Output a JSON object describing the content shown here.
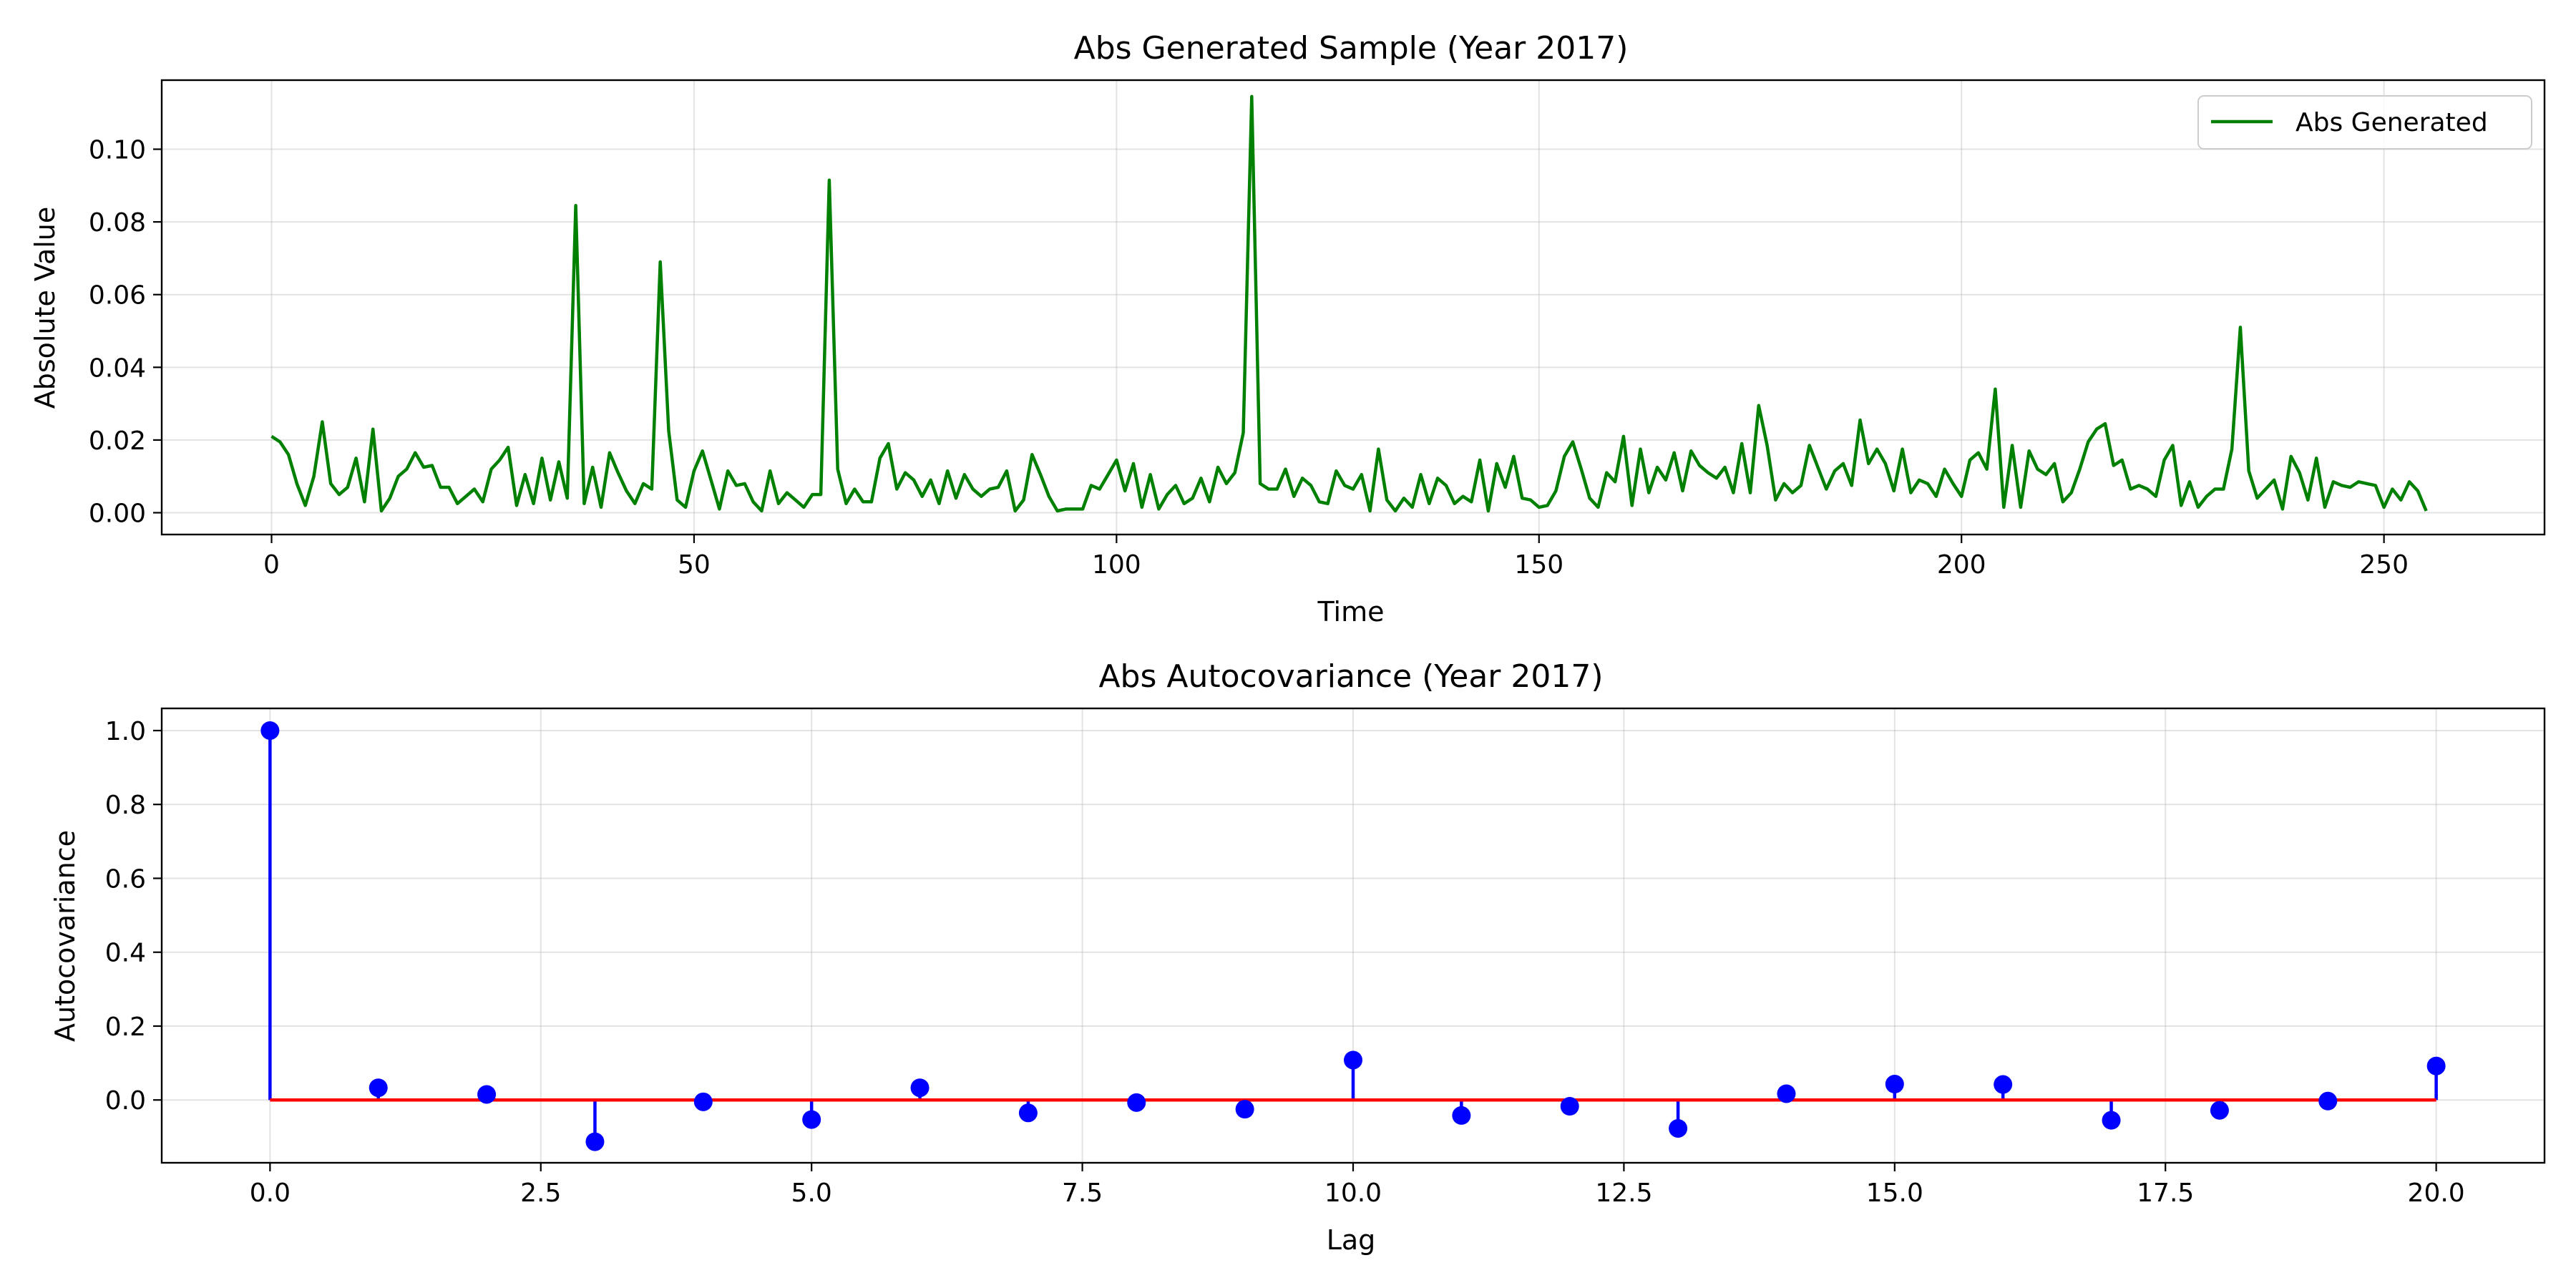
{
  "colors": {
    "series_line": "#008000",
    "stem": "#0000ff",
    "marker": "#0000ff",
    "baseline": "#ff0000"
  },
  "chart_data": [
    {
      "type": "line",
      "title": "Abs Generated Sample (Year 2017)",
      "xlabel": "Time",
      "ylabel": "Absolute Value",
      "xlim": [
        -13,
        269
      ],
      "ylim": [
        -0.006,
        0.119
      ],
      "xticks": [
        0,
        50,
        100,
        150,
        200,
        250
      ],
      "xtick_labels": [
        "0",
        "50",
        "100",
        "150",
        "200",
        "250"
      ],
      "yticks": [
        0.0,
        0.02,
        0.04,
        0.06,
        0.08,
        0.1
      ],
      "ytick_labels": [
        "0.00",
        "0.02",
        "0.04",
        "0.06",
        "0.08",
        "0.10"
      ],
      "grid": true,
      "legend": {
        "placement": "top-right",
        "entries": [
          "Abs Generated"
        ]
      },
      "series": [
        {
          "name": "Abs Generated",
          "x_start": 0,
          "x_step": 1,
          "values": [
            0.021,
            0.0195,
            0.016,
            0.008,
            0.002,
            0.01,
            0.025,
            0.008,
            0.005,
            0.007,
            0.015,
            0.003,
            0.023,
            0.0005,
            0.004,
            0.01,
            0.012,
            0.0165,
            0.0125,
            0.013,
            0.007,
            0.007,
            0.0025,
            0.0045,
            0.0065,
            0.003,
            0.012,
            0.0145,
            0.018,
            0.002,
            0.0105,
            0.0025,
            0.015,
            0.0035,
            0.014,
            0.004,
            0.0845,
            0.0025,
            0.0125,
            0.0015,
            0.0165,
            0.011,
            0.006,
            0.0025,
            0.008,
            0.0065,
            0.069,
            0.0225,
            0.0035,
            0.0015,
            0.0115,
            0.017,
            0.009,
            0.001,
            0.0115,
            0.0075,
            0.008,
            0.003,
            0.0005,
            0.0115,
            0.0025,
            0.0055,
            0.0035,
            0.0015,
            0.005,
            0.005,
            0.0915,
            0.012,
            0.0025,
            0.0065,
            0.003,
            0.003,
            0.015,
            0.019,
            0.0065,
            0.011,
            0.009,
            0.0045,
            0.009,
            0.0025,
            0.0115,
            0.004,
            0.0105,
            0.0065,
            0.0045,
            0.0065,
            0.007,
            0.0115,
            0.0005,
            0.0035,
            0.016,
            0.0105,
            0.0045,
            0.0005,
            0.001,
            0.001,
            0.001,
            0.0075,
            0.0065,
            0.0105,
            0.0145,
            0.006,
            0.0135,
            0.0015,
            0.0105,
            0.001,
            0.005,
            0.0075,
            0.0025,
            0.004,
            0.0095,
            0.003,
            0.0125,
            0.008,
            0.011,
            0.022,
            0.1145,
            0.008,
            0.0065,
            0.0065,
            0.012,
            0.0045,
            0.0095,
            0.0075,
            0.003,
            0.0025,
            0.0115,
            0.0075,
            0.0065,
            0.0105,
            0.0005,
            0.0175,
            0.0035,
            0.0005,
            0.004,
            0.0015,
            0.0105,
            0.0025,
            0.0095,
            0.0075,
            0.0025,
            0.0045,
            0.003,
            0.0145,
            0.0005,
            0.0135,
            0.007,
            0.0155,
            0.004,
            0.0035,
            0.0015,
            0.002,
            0.006,
            0.0155,
            0.0195,
            0.012,
            0.004,
            0.0015,
            0.011,
            0.0085,
            0.021,
            0.002,
            0.0175,
            0.0055,
            0.0125,
            0.009,
            0.0165,
            0.006,
            0.017,
            0.013,
            0.011,
            0.0095,
            0.0125,
            0.0055,
            0.019,
            0.0055,
            0.0295,
            0.0185,
            0.0035,
            0.008,
            0.0055,
            0.0075,
            0.0185,
            0.0125,
            0.0065,
            0.0115,
            0.0135,
            0.0075,
            0.0255,
            0.0135,
            0.0175,
            0.0135,
            0.006,
            0.0175,
            0.0055,
            0.009,
            0.008,
            0.0045,
            0.012,
            0.008,
            0.0045,
            0.0145,
            0.0165,
            0.012,
            0.034,
            0.0015,
            0.0185,
            0.0015,
            0.017,
            0.012,
            0.0105,
            0.0135,
            0.003,
            0.0055,
            0.012,
            0.0195,
            0.023,
            0.0245,
            0.013,
            0.0145,
            0.0065,
            0.0075,
            0.0065,
            0.0045,
            0.0145,
            0.0185,
            0.002,
            0.0085,
            0.0015,
            0.0045,
            0.0065,
            0.0065,
            0.0175,
            0.051,
            0.0115,
            0.004,
            0.0065,
            0.009,
            0.001,
            0.0155,
            0.011,
            0.0035,
            0.015,
            0.0015,
            0.0085,
            0.0075,
            0.007,
            0.0085,
            0.008,
            0.0075,
            0.0015,
            0.0065,
            0.0035,
            0.0085,
            0.006,
            0.0005
          ]
        }
      ]
    },
    {
      "type": "stem",
      "title": "Abs Autocovariance (Year 2017)",
      "xlabel": "Lag",
      "ylabel": "Autocovariance",
      "xlim": [
        -1.0,
        21.0
      ],
      "ylim": [
        -0.17,
        1.06
      ],
      "xticks": [
        0,
        2.5,
        5,
        7.5,
        10,
        12.5,
        15,
        17.5,
        20
      ],
      "xtick_labels": [
        "0.0",
        "2.5",
        "5.0",
        "7.5",
        "10.0",
        "12.5",
        "15.0",
        "17.5",
        "20.0"
      ],
      "yticks": [
        0.0,
        0.2,
        0.4,
        0.6,
        0.8,
        1.0
      ],
      "ytick_labels": [
        "0.0",
        "0.2",
        "0.4",
        "0.6",
        "0.8",
        "1.0"
      ],
      "grid": true,
      "baseline": 0,
      "x": [
        0,
        1,
        2,
        3,
        4,
        5,
        6,
        7,
        8,
        9,
        10,
        11,
        12,
        13,
        14,
        15,
        16,
        17,
        18,
        19,
        20
      ],
      "values": [
        1.0,
        0.033,
        0.015,
        -0.113,
        -0.005,
        -0.053,
        0.033,
        -0.035,
        -0.007,
        -0.025,
        0.108,
        -0.042,
        -0.017,
        -0.077,
        0.017,
        0.043,
        0.042,
        -0.055,
        -0.028,
        -0.003,
        0.092
      ]
    }
  ]
}
